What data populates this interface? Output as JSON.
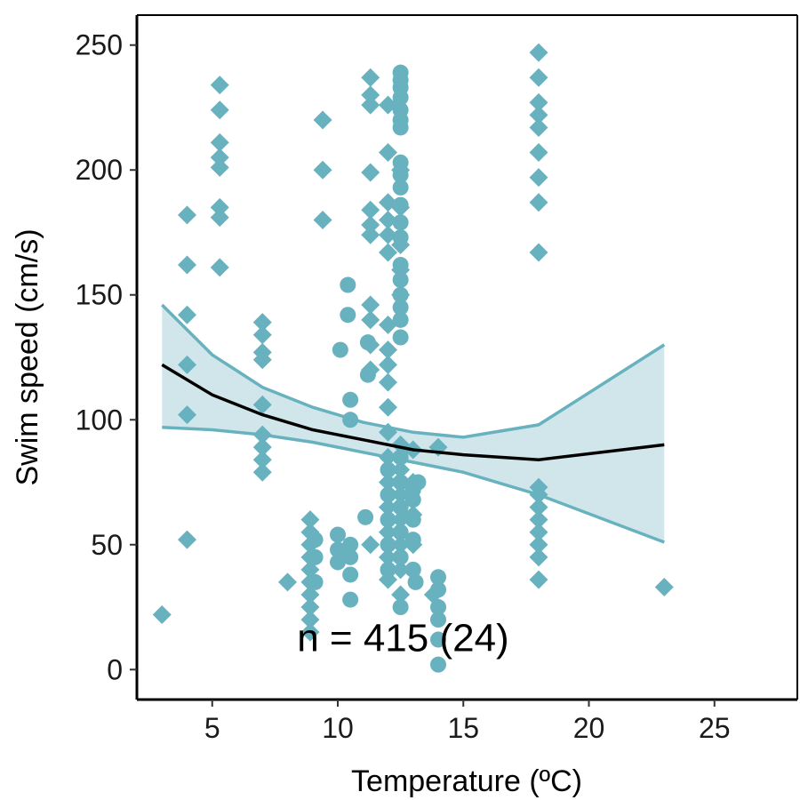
{
  "chart_data": {
    "type": "scatter",
    "title": "",
    "xlabel": "Temperature (ºC)",
    "ylabel": "Swim speed (cm/s)",
    "xlim": [
      2.0,
      28.3
    ],
    "ylim": [
      -12,
      262
    ],
    "x_ticks": [
      5,
      10,
      15,
      20,
      25
    ],
    "x_tick_labels": [
      "5",
      "10",
      "15",
      "20",
      "25"
    ],
    "y_ticks": [
      0,
      50,
      100,
      150,
      200,
      250
    ],
    "y_tick_labels": [
      "0",
      "50",
      "100",
      "150",
      "200",
      "250"
    ],
    "grid": false,
    "legend": "none",
    "annotation": {
      "text": "n = 415 (24)",
      "x": 12.6,
      "y": 13
    },
    "colors": {
      "points": "#68b1bf",
      "ribbon_fill": "#d1e6eb",
      "ribbon_line": "#68b1bf",
      "fit_line": "#000000"
    },
    "series": [
      {
        "marker": "diamond",
        "points": [
          [
            3,
            22
          ],
          [
            4,
            52
          ],
          [
            4,
            102
          ],
          [
            4,
            122
          ],
          [
            4,
            142
          ],
          [
            4,
            162
          ],
          [
            4,
            182
          ],
          [
            5.3,
            161
          ],
          [
            5.3,
            181
          ],
          [
            5.3,
            185
          ],
          [
            5.3,
            201
          ],
          [
            5.3,
            205
          ],
          [
            5.3,
            211
          ],
          [
            5.3,
            224
          ],
          [
            5.3,
            234
          ],
          [
            7,
            79
          ],
          [
            7,
            84
          ],
          [
            7,
            89
          ],
          [
            7,
            94
          ],
          [
            7,
            106
          ],
          [
            7,
            124
          ],
          [
            7,
            127
          ],
          [
            7,
            134
          ],
          [
            7,
            139
          ],
          [
            8,
            35
          ],
          [
            8.9,
            15
          ],
          [
            8.9,
            20
          ],
          [
            8.9,
            25
          ],
          [
            8.9,
            30
          ],
          [
            8.9,
            35
          ],
          [
            8.9,
            40
          ],
          [
            8.9,
            45
          ],
          [
            8.9,
            50
          ],
          [
            8.9,
            55
          ],
          [
            8.9,
            60
          ],
          [
            9.4,
            180
          ],
          [
            9.4,
            200
          ],
          [
            9.4,
            220
          ],
          [
            11.3,
            50
          ],
          [
            11.3,
            120
          ],
          [
            11.3,
            130
          ],
          [
            11.3,
            140
          ],
          [
            11.3,
            146
          ],
          [
            11.3,
            174
          ],
          [
            11.3,
            178
          ],
          [
            11.3,
            184
          ],
          [
            11.3,
            199
          ],
          [
            11.3,
            226
          ],
          [
            11.3,
            230
          ],
          [
            11.3,
            237
          ],
          [
            12,
            36
          ],
          [
            12,
            45
          ],
          [
            12,
            55
          ],
          [
            12,
            65
          ],
          [
            12,
            75
          ],
          [
            12,
            85
          ],
          [
            12,
            95
          ],
          [
            12,
            105
          ],
          [
            12,
            115
          ],
          [
            12,
            122
          ],
          [
            12,
            128
          ],
          [
            12,
            138
          ],
          [
            12,
            167
          ],
          [
            12,
            174
          ],
          [
            12,
            180
          ],
          [
            12,
            187
          ],
          [
            12,
            207
          ],
          [
            12,
            226
          ],
          [
            12.5,
            30
          ],
          [
            12.5,
            40
          ],
          [
            12.5,
            50
          ],
          [
            12.5,
            60
          ],
          [
            12.5,
            70
          ],
          [
            12.5,
            80
          ],
          [
            12.5,
            90
          ],
          [
            12.5,
            150
          ],
          [
            12.5,
            160
          ],
          [
            12.5,
            170
          ],
          [
            12.5,
            185
          ],
          [
            12.5,
            200
          ],
          [
            13,
            50
          ],
          [
            13,
            62
          ],
          [
            13,
            75
          ],
          [
            13,
            88
          ],
          [
            13.8,
            30
          ],
          [
            14,
            89
          ],
          [
            18,
            36
          ],
          [
            18,
            45
          ],
          [
            18,
            50
          ],
          [
            18,
            55
          ],
          [
            18,
            60
          ],
          [
            18,
            65
          ],
          [
            18,
            70
          ],
          [
            18,
            73
          ],
          [
            18,
            167
          ],
          [
            18,
            187
          ],
          [
            18,
            197
          ],
          [
            18,
            207
          ],
          [
            18,
            217
          ],
          [
            18,
            222
          ],
          [
            18,
            227
          ],
          [
            18,
            237
          ],
          [
            18,
            247
          ],
          [
            23,
            33
          ]
        ]
      },
      {
        "marker": "circle",
        "points": [
          [
            9.1,
            35
          ],
          [
            9.1,
            45
          ],
          [
            9.1,
            52
          ],
          [
            10.1,
            128
          ],
          [
            10.4,
            142
          ],
          [
            10.4,
            154
          ],
          [
            10,
            43
          ],
          [
            10,
            48
          ],
          [
            10,
            54
          ],
          [
            10.5,
            28
          ],
          [
            10.5,
            38
          ],
          [
            10.5,
            45
          ],
          [
            10.5,
            50
          ],
          [
            10.5,
            100
          ],
          [
            10.5,
            108
          ],
          [
            11.1,
            61
          ],
          [
            11.2,
            118
          ],
          [
            11.2,
            131
          ],
          [
            12,
            40
          ],
          [
            12,
            50
          ],
          [
            12,
            60
          ],
          [
            12,
            70
          ],
          [
            12,
            80
          ],
          [
            12.5,
            25
          ],
          [
            12.5,
            45
          ],
          [
            12.5,
            55
          ],
          [
            12.5,
            65
          ],
          [
            12.5,
            75
          ],
          [
            12.5,
            85
          ],
          [
            12.5,
            133
          ],
          [
            12.5,
            140
          ],
          [
            12.5,
            145
          ],
          [
            12.5,
            150
          ],
          [
            12.5,
            156
          ],
          [
            12.5,
            162
          ],
          [
            12.5,
            173
          ],
          [
            12.5,
            179
          ],
          [
            12.5,
            186
          ],
          [
            12.5,
            193
          ],
          [
            12.5,
            198
          ],
          [
            12.5,
            203
          ],
          [
            12.5,
            217
          ],
          [
            12.5,
            220
          ],
          [
            12.5,
            224
          ],
          [
            12.5,
            229
          ],
          [
            12.5,
            233
          ],
          [
            12.5,
            236
          ],
          [
            12.5,
            239
          ],
          [
            13,
            40
          ],
          [
            13,
            52
          ],
          [
            13,
            60
          ],
          [
            13,
            68
          ],
          [
            13,
            72
          ],
          [
            13.1,
            35
          ],
          [
            13.2,
            75
          ],
          [
            14,
            2
          ],
          [
            14,
            12
          ],
          [
            14,
            20
          ],
          [
            14,
            25
          ],
          [
            14,
            32
          ],
          [
            14,
            37
          ]
        ]
      }
    ],
    "fit": {
      "x": [
        3,
        5,
        7,
        9,
        11,
        13,
        15,
        18,
        23
      ],
      "y": [
        122,
        110,
        102,
        96,
        92,
        88,
        86,
        84,
        90
      ],
      "lower": [
        97,
        96,
        94,
        91,
        87,
        83,
        79,
        70,
        51
      ],
      "upper": [
        146,
        126,
        113,
        105,
        99,
        95,
        93,
        98,
        130
      ]
    }
  }
}
